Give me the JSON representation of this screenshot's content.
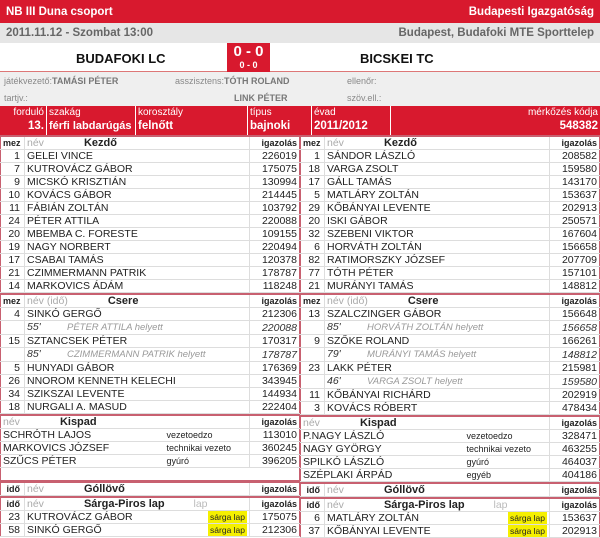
{
  "header": {
    "league": "NB III Duna csoport",
    "directorate": "Budapesti Igazgatóság",
    "datetime": "2011.11.12 - Szombat 13:00",
    "venue": "Budapest, Budafoki MTE Sporttelep"
  },
  "match": {
    "home": "BUDAFOKI LC",
    "away": "BICSKEI TC",
    "score": "0 - 0",
    "halftime": "0 - 0"
  },
  "officials": {
    "referee_label": "játékvezető:",
    "referee": "TAMÁSI PÉTER",
    "assistant_label": "asszisztens:",
    "assistant1": "TÓTH ROLAND",
    "assistant2": "LINK PÉTER",
    "inspector_label": "ellenőr:",
    "tartjv_label": "tartjv.:",
    "szovell_label": "szöv.ell.:"
  },
  "info": {
    "round_label": "forduló",
    "round": "13.",
    "branch_label": "szakág",
    "branch": "férfi labdarúgás",
    "age_label": "korosztály",
    "age": "felnőtt",
    "type_label": "típus",
    "type": "bajnoki",
    "season_label": "évad",
    "season": "2011/2012",
    "code_label": "mérkőzés kódja",
    "code": "548382"
  },
  "labels": {
    "mez": "mez",
    "nev": "név",
    "nev_ido": "név (idő)",
    "igazolas": "igazolás",
    "kezdo": "Kezdő",
    "csere": "Csere",
    "kispad": "Kispad",
    "gollovo": "Góllövő",
    "cards": "Sárga-Piros lap",
    "ido": "idő",
    "lap": "lap",
    "helyett": "helyett"
  },
  "colors": {
    "accent": "#d8192e",
    "yellow_card": "#f5f000"
  },
  "home": {
    "starters": [
      [
        "1",
        "GELEI VINCE",
        "226019"
      ],
      [
        "7",
        "KUTROVÁCZ GÁBOR",
        "175075"
      ],
      [
        "9",
        "MICSKÓ KRISZTIÁN",
        "130994"
      ],
      [
        "10",
        "KOVÁCS GÁBOR",
        "214445"
      ],
      [
        "11",
        "FÁBIÁN ZOLTÁN",
        "103792"
      ],
      [
        "24",
        "PÉTER ATTILA",
        "220088"
      ],
      [
        "20",
        "MBEMBA C. FORESTE",
        "109155"
      ],
      [
        "19",
        "NAGY NORBERT",
        "220494"
      ],
      [
        "17",
        "CSABAI TAMÁS",
        "120378"
      ],
      [
        "21",
        "CZIMMERMANN PATRIK",
        "178787"
      ],
      [
        "14",
        "MARKOVICS ÁDÁM",
        "118248"
      ]
    ],
    "subs": [
      {
        "mez": "4",
        "name": "SINKÓ GERGŐ",
        "id": "212306",
        "min": "55'",
        "replaced": "PÉTER ATTILA helyett",
        "replaced_id": "220088"
      },
      {
        "mez": "15",
        "name": "SZTANCSEK PÉTER",
        "id": "170317",
        "min": "85'",
        "replaced": "CZIMMERMANN PATRIK helyett",
        "replaced_id": "178787"
      },
      {
        "mez": "5",
        "name": "HUNYADI GÁBOR",
        "id": "176369"
      },
      {
        "mez": "26",
        "name": "NNOROM KENNETH KELECHI",
        "id": "343945"
      },
      {
        "mez": "34",
        "name": "SZIKSZAI LEVENTE",
        "id": "144934"
      },
      {
        "mez": "18",
        "name": "NURGALI A. MASUD",
        "id": "222404"
      }
    ],
    "bench": [
      [
        "SCHRÓTH LAJOS",
        "vezetoedzo",
        "113010"
      ],
      [
        "MARKOVICS JÓZSEF",
        "technikai vezeto",
        "360245"
      ],
      [
        "SZŰCS PÉTER",
        "gyúró",
        "396205"
      ]
    ],
    "cards": [
      [
        "23",
        "KUTROVÁCZ GÁBOR",
        "sárga lap",
        "175075"
      ],
      [
        "58",
        "SINKÓ GERGŐ",
        "sárga lap",
        "212306"
      ]
    ]
  },
  "away": {
    "starters": [
      [
        "1",
        "SÁNDOR LÁSZLÓ",
        "208582"
      ],
      [
        "18",
        "VARGA ZSOLT",
        "159580"
      ],
      [
        "17",
        "GÁLL TAMÁS",
        "143170"
      ],
      [
        "5",
        "MATLÁRY ZOLTÁN",
        "153637"
      ],
      [
        "29",
        "KŐBÁNYAI LEVENTE",
        "202913"
      ],
      [
        "20",
        "ISKI GÁBOR",
        "250571"
      ],
      [
        "32",
        "SZEBENI VIKTOR",
        "167604"
      ],
      [
        "6",
        "HORVÁTH ZOLTÁN",
        "156658"
      ],
      [
        "82",
        "RATIMORSZKY JÓZSEF",
        "207709"
      ],
      [
        "77",
        "TÓTH PÉTER",
        "157101"
      ],
      [
        "21",
        "MURÁNYI TAMÁS",
        "148812"
      ]
    ],
    "subs": [
      {
        "mez": "13",
        "name": "SZALCZINGER GÁBOR",
        "id": "156648",
        "min": "85'",
        "replaced": "HORVÁTH ZOLTÁN helyett",
        "replaced_id": "156658"
      },
      {
        "mez": "9",
        "name": "SZŐKE ROLAND",
        "id": "166261",
        "min": "79'",
        "replaced": "MURÁNYI TAMÁS helyett",
        "replaced_id": "148812"
      },
      {
        "mez": "23",
        "name": "LAKK PÉTER",
        "id": "215981",
        "min": "46'",
        "replaced": "VARGA ZSOLT helyett",
        "replaced_id": "159580"
      },
      {
        "mez": "11",
        "name": "KŐBÁNYAI RICHÁRD",
        "id": "202919"
      },
      {
        "mez": "3",
        "name": "KOVÁCS RÓBERT",
        "id": "478434"
      }
    ],
    "bench": [
      [
        "P.NAGY LÁSZLÓ",
        "vezetoedzo",
        "328471"
      ],
      [
        "NAGY GYÖRGY",
        "technikai vezeto",
        "463255"
      ],
      [
        "SPILKÓ LÁSZLÓ",
        "gyúró",
        "464037"
      ],
      [
        "SZÉPLAKI ÁRPÁD",
        "egyéb",
        "404186"
      ]
    ],
    "cards": [
      [
        "6",
        "MATLÁRY ZOLTÁN",
        "sárga lap",
        "153637"
      ],
      [
        "37",
        "KŐBÁNYAI LEVENTE",
        "sárga lap",
        "202913"
      ]
    ]
  }
}
